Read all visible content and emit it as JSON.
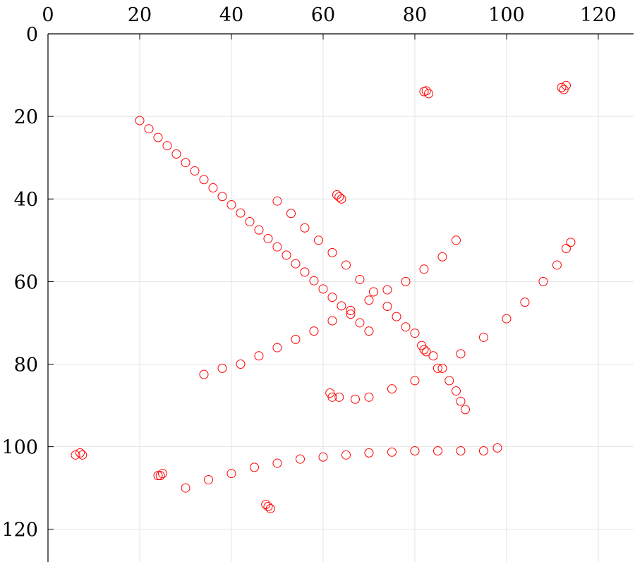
{
  "chart_data": {
    "type": "scatter",
    "color": "#ff0000",
    "x": [
      20,
      22,
      24,
      26,
      28,
      30,
      32,
      34,
      36,
      38,
      40,
      42,
      44,
      46,
      48,
      50,
      52,
      54,
      56,
      58,
      60,
      62,
      64,
      66,
      68,
      70,
      50,
      53,
      56,
      59,
      62,
      65,
      68,
      71,
      74,
      76,
      78,
      80,
      84,
      86,
      87.5,
      89,
      90,
      91,
      34,
      38,
      42,
      46,
      50,
      54,
      58,
      62,
      66,
      70,
      74,
      78,
      82,
      86,
      89,
      67,
      70,
      75,
      80,
      85,
      90,
      95,
      100,
      104,
      108,
      111,
      113,
      114,
      30,
      35,
      40,
      45,
      50,
      55,
      60,
      65,
      70,
      75,
      80,
      85,
      90,
      95,
      98,
      82,
      83,
      82.5,
      112,
      113,
      112.5,
      63,
      64,
      63.5,
      81.5,
      82,
      82.5,
      61.5,
      62,
      63.5,
      6,
      7,
      7.5,
      24,
      25,
      24.5,
      47.5,
      48.5,
      48
    ],
    "values": [
      21,
      23,
      25.1,
      27.1,
      29.1,
      31.2,
      33.2,
      35.3,
      37.3,
      39.4,
      41.4,
      43.4,
      45.5,
      47.5,
      49.6,
      51.6,
      53.6,
      55.7,
      57.7,
      59.8,
      61.8,
      63.8,
      65.9,
      67.9,
      70,
      72,
      40.5,
      43.5,
      47,
      50,
      53,
      56,
      59.5,
      62.5,
      66,
      68.5,
      71,
      72.5,
      78,
      81,
      84,
      86.5,
      89,
      91,
      82.5,
      81,
      80,
      78,
      76,
      74,
      72,
      69.5,
      67,
      64.5,
      62,
      60,
      57,
      54,
      50,
      88.5,
      88,
      86,
      84,
      81,
      77.5,
      73.5,
      69,
      65,
      60,
      56,
      52,
      50.5,
      110,
      108,
      106.5,
      105,
      104,
      103,
      102.5,
      102,
      101.5,
      101.3,
      101,
      101,
      101,
      101,
      100.3,
      14,
      14.5,
      13.8,
      13,
      12.5,
      13.5,
      39,
      40,
      39.5,
      75.5,
      76.5,
      77,
      87,
      88,
      88,
      102,
      101.5,
      102,
      107,
      106.5,
      107,
      114,
      115,
      114.5
    ],
    "xlim": [
      0,
      127.7
    ],
    "ylim": [
      0,
      127.9
    ],
    "xticks": [
      0,
      20,
      40,
      60,
      80,
      100,
      120
    ],
    "yticks": [
      0,
      20,
      40,
      60,
      80,
      100,
      120
    ],
    "y_inverted": true,
    "x_axis_position": "top",
    "grid": true
  }
}
